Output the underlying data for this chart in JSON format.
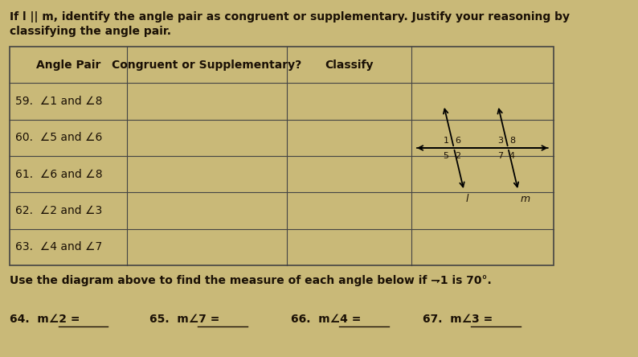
{
  "bg_color": "#c9b978",
  "title_line1": "If l || m, identify the angle pair as congruent or supplementary. Justify your reasoning by",
  "title_line2": "classifying the angle pair.",
  "table_headers": [
    "Angle Pair",
    "Congruent or Supplementary?",
    "Classify"
  ],
  "table_rows": [
    "59.  ⇁1 and ⇁8",
    "60.  ⇁5 and ⇁6",
    "61.  ⇁6 and ⇁8",
    "62.  ⇁2 and ⇁3",
    "63.  ⇁4 and ⇁7"
  ],
  "bottom_text": "Use the diagram above to find the measure of each angle below if ⇁1 is 70°.",
  "text_color": "#1a1005",
  "line_color": "#444444"
}
